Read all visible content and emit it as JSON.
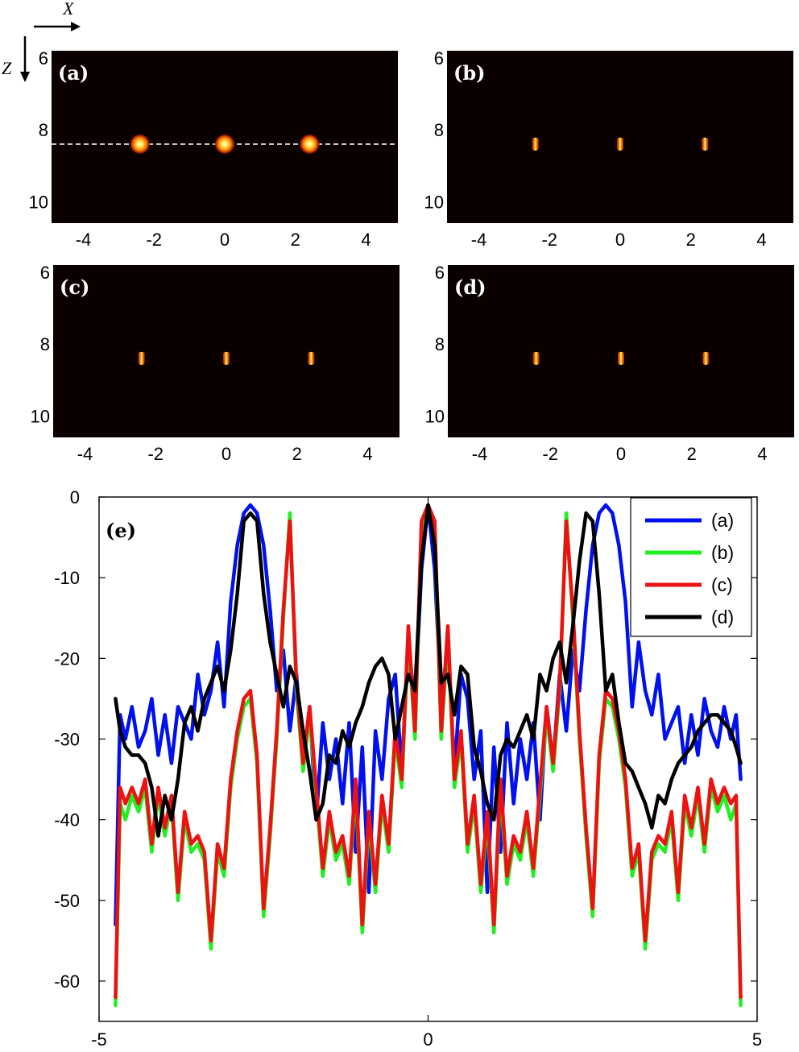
{
  "axis_indicator": {
    "x_letter": "X",
    "z_letter": "Z"
  },
  "chart_data": [
    {
      "type": "heatmap",
      "panel": "(a)",
      "x_ticks": [
        "-4",
        "-2",
        "0",
        "2",
        "4"
      ],
      "y_ticks": [
        "6",
        "8",
        "10"
      ],
      "xlim": [
        -4.9,
        4.9
      ],
      "ylim": [
        5.8,
        10.6
      ],
      "spots": [
        {
          "x": -2.4,
          "z": 8.4
        },
        {
          "x": 0,
          "z": 8.4
        },
        {
          "x": 2.4,
          "z": 8.4
        }
      ],
      "spot_size": "large",
      "dashed_line_z": 8.4
    },
    {
      "type": "heatmap",
      "panel": "(b)",
      "x_ticks": [
        "-4",
        "-2",
        "0",
        "2",
        "4"
      ],
      "y_ticks": [
        "6",
        "8",
        "10"
      ],
      "xlim": [
        -4.9,
        4.9
      ],
      "ylim": [
        5.8,
        10.6
      ],
      "spots": [
        {
          "x": -2.4,
          "z": 8.4
        },
        {
          "x": 0,
          "z": 8.4
        },
        {
          "x": 2.4,
          "z": 8.4
        }
      ],
      "spot_size": "small"
    },
    {
      "type": "heatmap",
      "panel": "(c)",
      "x_ticks": [
        "-4",
        "-2",
        "0",
        "2",
        "4"
      ],
      "y_ticks": [
        "6",
        "8",
        "10"
      ],
      "xlim": [
        -4.9,
        4.9
      ],
      "ylim": [
        5.8,
        10.6
      ],
      "spots": [
        {
          "x": -2.4,
          "z": 8.4
        },
        {
          "x": 0,
          "z": 8.4
        },
        {
          "x": 2.4,
          "z": 8.4
        }
      ],
      "spot_size": "small"
    },
    {
      "type": "heatmap",
      "panel": "(d)",
      "x_ticks": [
        "-4",
        "-2",
        "0",
        "2",
        "4"
      ],
      "y_ticks": [
        "6",
        "8",
        "10"
      ],
      "xlim": [
        -4.9,
        4.9
      ],
      "ylim": [
        5.8,
        10.6
      ],
      "spots": [
        {
          "x": -2.4,
          "z": 8.4
        },
        {
          "x": 0,
          "z": 8.4
        },
        {
          "x": 2.4,
          "z": 8.4
        }
      ],
      "spot_size": "small"
    },
    {
      "type": "line",
      "panel": "(e)",
      "xlim": [
        -5,
        5
      ],
      "ylim": [
        -65,
        0
      ],
      "x_ticks": [
        "-5",
        "0",
        "5"
      ],
      "y_ticks": [
        "0",
        "-10",
        "-20",
        "-30",
        "-40",
        "-50",
        "-60"
      ],
      "legend_position": "top-right",
      "series": [
        {
          "name": "(a)",
          "color": "#0010ee",
          "x": [
            -4.75,
            -4.68,
            -4.6,
            -4.5,
            -4.4,
            -4.3,
            -4.2,
            -4.1,
            -4.0,
            -3.9,
            -3.8,
            -3.7,
            -3.6,
            -3.5,
            -3.4,
            -3.3,
            -3.2,
            -3.1,
            -3.0,
            -2.9,
            -2.8,
            -2.7,
            -2.6,
            -2.5,
            -2.4,
            -2.3,
            -2.2,
            -2.1,
            -2.0,
            -1.9,
            -1.8,
            -1.7,
            -1.6,
            -1.5,
            -1.4,
            -1.3,
            -1.2,
            -1.1,
            -1.0,
            -0.9,
            -0.8,
            -0.7,
            -0.6,
            -0.5,
            -0.4,
            -0.3,
            -0.2,
            -0.1,
            0.0,
            0.1,
            0.2,
            0.3,
            0.4,
            0.5,
            0.6,
            0.7,
            0.8,
            0.9,
            1.0,
            1.1,
            1.2,
            1.3,
            1.4,
            1.5,
            1.6,
            1.7,
            1.8,
            1.9,
            2.0,
            2.1,
            2.2,
            2.3,
            2.4,
            2.5,
            2.6,
            2.7,
            2.8,
            2.9,
            3.0,
            3.1,
            3.2,
            3.3,
            3.4,
            3.5,
            3.6,
            3.7,
            3.8,
            3.9,
            4.0,
            4.1,
            4.2,
            4.3,
            4.4,
            4.5,
            4.6,
            4.68,
            4.75
          ],
          "y": [
            -53,
            -27,
            -30,
            -26,
            -31,
            -29,
            -25,
            -32,
            -27,
            -33,
            -26,
            -28,
            -30,
            -22,
            -27,
            -24,
            -18,
            -26,
            -13,
            -6,
            -2,
            -1,
            -2,
            -6,
            -14,
            -24,
            -19,
            -29,
            -22,
            -33,
            -26,
            -40,
            -28,
            -35,
            -30,
            -38,
            -28,
            -44,
            -31,
            -49,
            -29,
            -35,
            -25,
            -22,
            -34,
            -18,
            -26,
            -9,
            -1,
            -9,
            -26,
            -18,
            -34,
            -22,
            -25,
            -35,
            -29,
            -49,
            -31,
            -44,
            -28,
            -38,
            -30,
            -35,
            -28,
            -40,
            -26,
            -33,
            -22,
            -29,
            -19,
            -24,
            -14,
            -6,
            -2,
            -1,
            -2,
            -6,
            -13,
            -26,
            -18,
            -24,
            -27,
            -22,
            -30,
            -28,
            -26,
            -33,
            -27,
            -32,
            -25,
            -29,
            -31,
            -26,
            -30,
            -27,
            -35
          ]
        },
        {
          "name": "(b)",
          "color": "#22ee22",
          "x": [
            -4.75,
            -4.68,
            -4.6,
            -4.5,
            -4.4,
            -4.3,
            -4.2,
            -4.1,
            -4.0,
            -3.9,
            -3.8,
            -3.7,
            -3.6,
            -3.5,
            -3.4,
            -3.3,
            -3.2,
            -3.1,
            -3.0,
            -2.9,
            -2.8,
            -2.7,
            -2.6,
            -2.5,
            -2.4,
            -2.3,
            -2.2,
            -2.1,
            -2.0,
            -1.9,
            -1.8,
            -1.7,
            -1.6,
            -1.5,
            -1.4,
            -1.3,
            -1.2,
            -1.1,
            -1.0,
            -0.9,
            -0.8,
            -0.7,
            -0.6,
            -0.5,
            -0.4,
            -0.3,
            -0.2,
            -0.1,
            0.0,
            0.1,
            0.2,
            0.3,
            0.4,
            0.5,
            0.6,
            0.7,
            0.8,
            0.9,
            1.0,
            1.1,
            1.2,
            1.3,
            1.4,
            1.5,
            1.6,
            1.7,
            1.8,
            1.9,
            2.0,
            2.1,
            2.2,
            2.3,
            2.4,
            2.5,
            2.6,
            2.7,
            2.8,
            2.9,
            3.0,
            3.1,
            3.2,
            3.3,
            3.4,
            3.5,
            3.6,
            3.7,
            3.8,
            3.9,
            4.0,
            4.1,
            4.2,
            4.3,
            4.4,
            4.5,
            4.6,
            4.68,
            4.75
          ],
          "y": [
            -63,
            -38,
            -40,
            -37,
            -39,
            -36,
            -44,
            -37,
            -42,
            -38,
            -50,
            -40,
            -44,
            -43,
            -45,
            -56,
            -44,
            -47,
            -36,
            -30,
            -26,
            -25,
            -33,
            -52,
            -42,
            -30,
            -15,
            -2,
            -24,
            -34,
            -27,
            -37,
            -47,
            -40,
            -45,
            -43,
            -48,
            -36,
            -54,
            -40,
            -49,
            -38,
            -44,
            -30,
            -36,
            -17,
            -30,
            -4,
            -1,
            -4,
            -30,
            -17,
            -36,
            -30,
            -44,
            -38,
            -49,
            -40,
            -54,
            -36,
            -48,
            -43,
            -45,
            -40,
            -47,
            -37,
            -27,
            -34,
            -24,
            -2,
            -15,
            -30,
            -42,
            -52,
            -33,
            -25,
            -26,
            -30,
            -36,
            -47,
            -44,
            -56,
            -45,
            -43,
            -44,
            -40,
            -50,
            -38,
            -42,
            -37,
            -44,
            -36,
            -39,
            -37,
            -40,
            -38,
            -63
          ]
        },
        {
          "name": "(c)",
          "color": "#ee1111",
          "x": [
            -4.75,
            -4.68,
            -4.6,
            -4.5,
            -4.4,
            -4.3,
            -4.2,
            -4.1,
            -4.0,
            -3.9,
            -3.8,
            -3.7,
            -3.6,
            -3.5,
            -3.4,
            -3.3,
            -3.2,
            -3.1,
            -3.0,
            -2.9,
            -2.8,
            -2.7,
            -2.6,
            -2.5,
            -2.4,
            -2.3,
            -2.2,
            -2.1,
            -2.0,
            -1.9,
            -1.8,
            -1.7,
            -1.6,
            -1.5,
            -1.4,
            -1.3,
            -1.2,
            -1.1,
            -1.0,
            -0.9,
            -0.8,
            -0.7,
            -0.6,
            -0.5,
            -0.4,
            -0.3,
            -0.2,
            -0.1,
            0.0,
            0.1,
            0.2,
            0.3,
            0.4,
            0.5,
            0.6,
            0.7,
            0.8,
            0.9,
            1.0,
            1.1,
            1.2,
            1.3,
            1.4,
            1.5,
            1.6,
            1.7,
            1.8,
            1.9,
            2.0,
            2.1,
            2.2,
            2.3,
            2.4,
            2.5,
            2.6,
            2.7,
            2.8,
            2.9,
            3.0,
            3.1,
            3.2,
            3.3,
            3.4,
            3.5,
            3.6,
            3.7,
            3.8,
            3.9,
            4.0,
            4.1,
            4.2,
            4.3,
            4.4,
            4.5,
            4.6,
            4.68,
            4.75
          ],
          "y": [
            -62,
            -36,
            -38,
            -36,
            -38,
            -35,
            -43,
            -36,
            -41,
            -37,
            -49,
            -39,
            -43,
            -42,
            -44,
            -55,
            -43,
            -46,
            -35,
            -29,
            -25,
            -24,
            -32,
            -51,
            -41,
            -29,
            -14,
            -3,
            -23,
            -33,
            -26,
            -36,
            -46,
            -39,
            -44,
            -42,
            -47,
            -35,
            -53,
            -39,
            -48,
            -37,
            -43,
            -29,
            -35,
            -16,
            -29,
            -3,
            -1,
            -3,
            -29,
            -16,
            -35,
            -29,
            -43,
            -37,
            -48,
            -39,
            -53,
            -35,
            -47,
            -42,
            -44,
            -39,
            -46,
            -36,
            -26,
            -33,
            -23,
            -3,
            -14,
            -29,
            -41,
            -51,
            -32,
            -24,
            -25,
            -29,
            -35,
            -46,
            -43,
            -55,
            -44,
            -42,
            -43,
            -39,
            -49,
            -37,
            -41,
            -36,
            -43,
            -35,
            -38,
            -36,
            -38,
            -37,
            -62
          ]
        },
        {
          "name": "(d)",
          "color": "#000000",
          "x": [
            -4.75,
            -4.68,
            -4.6,
            -4.5,
            -4.4,
            -4.3,
            -4.2,
            -4.1,
            -4.0,
            -3.9,
            -3.8,
            -3.7,
            -3.6,
            -3.5,
            -3.4,
            -3.3,
            -3.2,
            -3.1,
            -3.0,
            -2.9,
            -2.8,
            -2.7,
            -2.6,
            -2.5,
            -2.4,
            -2.3,
            -2.2,
            -2.1,
            -2.0,
            -1.9,
            -1.8,
            -1.7,
            -1.6,
            -1.5,
            -1.4,
            -1.3,
            -1.2,
            -1.1,
            -1.0,
            -0.9,
            -0.8,
            -0.7,
            -0.6,
            -0.5,
            -0.4,
            -0.3,
            -0.2,
            -0.1,
            0.0,
            0.1,
            0.2,
            0.3,
            0.4,
            0.5,
            0.6,
            0.7,
            0.8,
            0.9,
            1.0,
            1.1,
            1.2,
            1.3,
            1.4,
            1.5,
            1.6,
            1.7,
            1.8,
            1.9,
            2.0,
            2.1,
            2.2,
            2.3,
            2.4,
            2.5,
            2.6,
            2.7,
            2.8,
            2.9,
            3.0,
            3.1,
            3.2,
            3.3,
            3.4,
            3.5,
            3.6,
            3.7,
            3.8,
            3.9,
            4.0,
            4.1,
            4.2,
            4.3,
            4.4,
            4.5,
            4.6,
            4.68,
            4.75
          ],
          "y": [
            -25,
            -29,
            -31,
            -32,
            -32,
            -33,
            -36,
            -42,
            -37,
            -40,
            -35,
            -28,
            -26,
            -29,
            -25,
            -23,
            -21,
            -24,
            -19,
            -12,
            -3,
            -2,
            -3,
            -12,
            -18,
            -22,
            -26,
            -21,
            -23,
            -29,
            -34,
            -40,
            -38,
            -32,
            -33,
            -29,
            -31,
            -28,
            -26,
            -23,
            -21,
            -20,
            -22,
            -30,
            -26,
            -22,
            -24,
            -8,
            -1,
            -6,
            -23,
            -22,
            -27,
            -21,
            -22,
            -31,
            -34,
            -38,
            -40,
            -32,
            -30,
            -31,
            -29,
            -27,
            -30,
            -22,
            -24,
            -20,
            -18,
            -23,
            -16,
            -8,
            -2,
            -3,
            -12,
            -24,
            -22,
            -28,
            -33,
            -34,
            -36,
            -38,
            -41,
            -37,
            -38,
            -35,
            -33,
            -32,
            -31,
            -29,
            -28,
            -27,
            -27,
            -28,
            -29,
            -31,
            -33
          ]
        }
      ]
    }
  ]
}
